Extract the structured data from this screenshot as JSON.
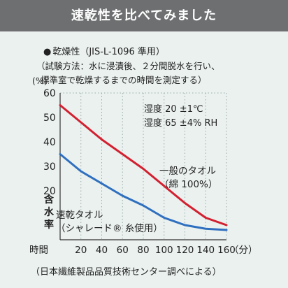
{
  "header": {
    "title": "速乾性を比べてみました"
  },
  "test": {
    "bullet": "●",
    "title": "乾燥性（JIS-L-1096 準用）",
    "method_line1": "（試験方法：水に浸漬後、２分間脱水を行い、",
    "method_line2": "標準室で乾燥するまでの時間を測定する）"
  },
  "conditions": {
    "temp": "湿度 20 ±1℃",
    "humidity": "湿度 65 ±4% RH"
  },
  "footer": {
    "source": "（日本繊維製品品質技術センター調べによる）"
  },
  "chart_data": {
    "type": "line",
    "y_unit_label": "(%)",
    "ylabel": "含水率",
    "xlabel_prefix": "時間",
    "xlabel_suffix": "（分）",
    "xlim": [
      0,
      160
    ],
    "ylim": [
      0,
      60
    ],
    "x_ticks": [
      20,
      40,
      60,
      80,
      100,
      120,
      140,
      160
    ],
    "y_ticks": [
      20,
      30,
      40,
      50,
      60
    ],
    "grid": "vertical-dotted",
    "series": [
      {
        "name": "一般のタオル",
        "name_sub": "（綿 100%）",
        "color": "#d32030",
        "x": [
          0,
          20,
          40,
          60,
          80,
          100,
          120,
          140,
          160
        ],
        "values": [
          55,
          48,
          41,
          35,
          29,
          22,
          15,
          9,
          6
        ]
      },
      {
        "name": "速乾タオル",
        "name_sub": "（シャレード® 糸使用）",
        "color": "#2f6fbf",
        "x": [
          0,
          20,
          40,
          60,
          80,
          100,
          120,
          140,
          160
        ],
        "values": [
          35,
          28,
          23,
          18,
          14,
          9,
          6,
          4.5,
          4
        ]
      }
    ]
  }
}
